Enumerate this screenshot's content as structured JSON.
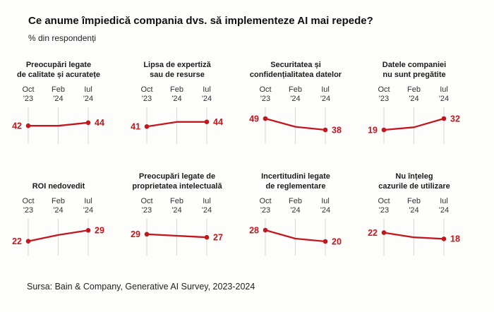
{
  "header": {
    "title": "Ce anume împiedică compania dvs. să implementeze AI mai repede?",
    "subtitle": "% din respondenți"
  },
  "footer": {
    "source": "Sursa: Bain & Company, Generative AI Survey, 2023-2024"
  },
  "colors": {
    "line": "#c4161d",
    "grid": "#dcdcdc",
    "title_text": "#1b1b1b",
    "axis_text": "#333333",
    "background": "#fdfdfc"
  },
  "chart_data": {
    "type": "line",
    "title": "Ce anume împiedică compania dvs. să implementeze AI mai repede?",
    "subtitle": "% din respondenți",
    "x": [
      "Oct '23",
      "Feb '24",
      "Iul '24"
    ],
    "x_labels": [
      [
        "Oct",
        "'23"
      ],
      [
        "Feb",
        "'24"
      ],
      [
        "Iul",
        "'24"
      ]
    ],
    "ylabel": "% din respondenți",
    "grid": "vertical-only",
    "legend": "none",
    "panels": [
      {
        "title": "Preocupări legate de calitate și acuratețe",
        "title_lines": [
          "Preocupări legate",
          "de calitate și acuratețe"
        ],
        "values": [
          42,
          42,
          44
        ],
        "start_label": "42",
        "end_label": "44"
      },
      {
        "title": "Lipsa de expertiză sau de resurse",
        "title_lines": [
          "Lipsa de expertiză",
          "sau de resurse"
        ],
        "values": [
          41,
          44,
          44
        ],
        "start_label": "41",
        "end_label": "44"
      },
      {
        "title": "Securitatea și confidențialitatea datelor",
        "title_lines": [
          "Securitatea și",
          "confidențialitatea datelor"
        ],
        "values": [
          49,
          41,
          38
        ],
        "start_label": "49",
        "end_label": "38"
      },
      {
        "title": "Datele companiei nu sunt pregătite",
        "title_lines": [
          "Datele companiei",
          "nu sunt pregătite"
        ],
        "values": [
          19,
          22,
          32
        ],
        "start_label": "19",
        "end_label": "32"
      },
      {
        "title": "ROI nedovedit",
        "title_lines": [
          "ROI nedovedit"
        ],
        "values": [
          22,
          26,
          29
        ],
        "start_label": "22",
        "end_label": "29"
      },
      {
        "title": "Preocupări legate de proprietatea intelectuală",
        "title_lines": [
          "Preocupări legate de",
          "proprietatea intelectuală"
        ],
        "values": [
          29,
          28,
          27
        ],
        "start_label": "29",
        "end_label": "27"
      },
      {
        "title": "Incertitudini legate de reglementare",
        "title_lines": [
          "Incertitudini legate",
          "de reglementare"
        ],
        "values": [
          28,
          22,
          20
        ],
        "start_label": "28",
        "end_label": "20"
      },
      {
        "title": "Nu înțeleg cazurile de utilizare",
        "title_lines": [
          "Nu înțeleg",
          "cazurile de utilizare"
        ],
        "values": [
          22,
          19,
          18
        ],
        "start_label": "22",
        "end_label": "18"
      }
    ]
  }
}
